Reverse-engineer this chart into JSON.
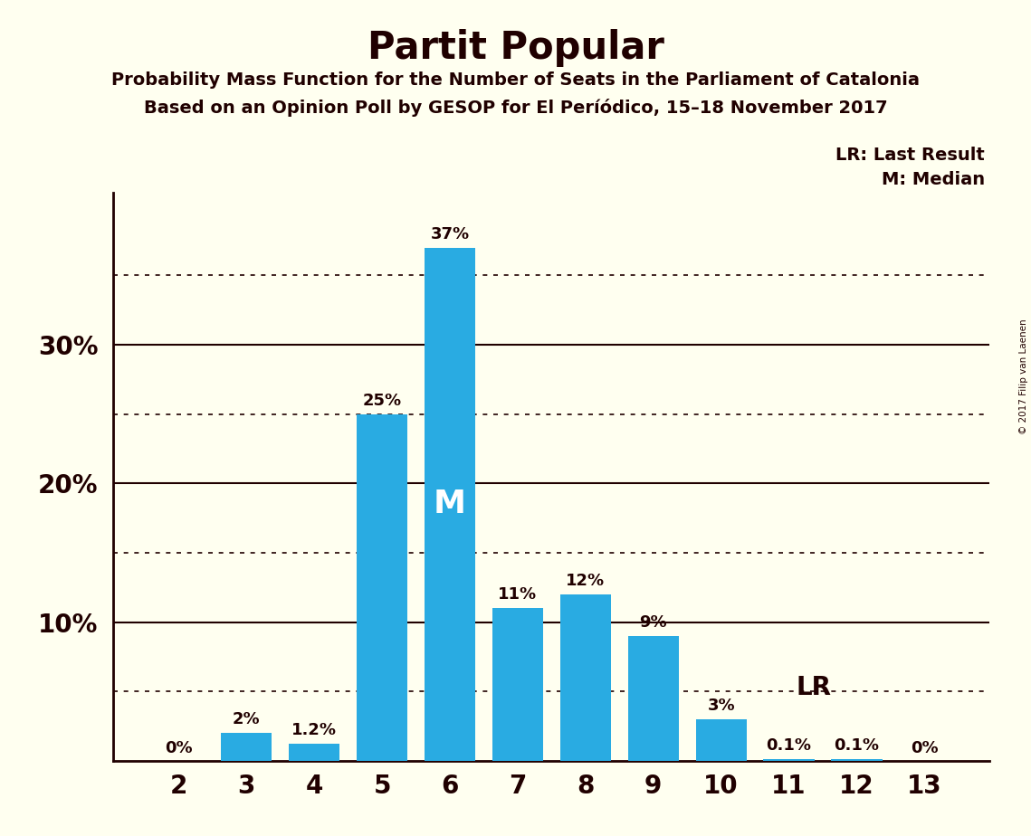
{
  "title": "Partit Popular",
  "subtitle1": "Probability Mass Function for the Number of Seats in the Parliament of Catalonia",
  "subtitle2": "Based on an Opinion Poll by GESOP for El Períódico, 15–18 November 2017",
  "copyright": "© 2017 Filip van Laenen",
  "categories": [
    2,
    3,
    4,
    5,
    6,
    7,
    8,
    9,
    10,
    11,
    12,
    13
  ],
  "values": [
    0.0,
    2.0,
    1.2,
    25.0,
    37.0,
    11.0,
    12.0,
    9.0,
    3.0,
    0.1,
    0.1,
    0.0
  ],
  "labels": [
    "0%",
    "2%",
    "1.2%",
    "25%",
    "37%",
    "11%",
    "12%",
    "9%",
    "3%",
    "0.1%",
    "0.1%",
    "0%"
  ],
  "bar_color": "#29ABE2",
  "background_color": "#FFFFF0",
  "text_color": "#200000",
  "median_bar": 6,
  "median_label": "M",
  "lr_bar": 11,
  "lr_label": "LR",
  "dotted_lines": [
    5,
    15,
    25,
    35
  ],
  "solid_lines": [
    10,
    20,
    30
  ],
  "ylim": [
    0,
    41
  ],
  "legend_lr": "LR: Last Result",
  "legend_m": "M: Median"
}
